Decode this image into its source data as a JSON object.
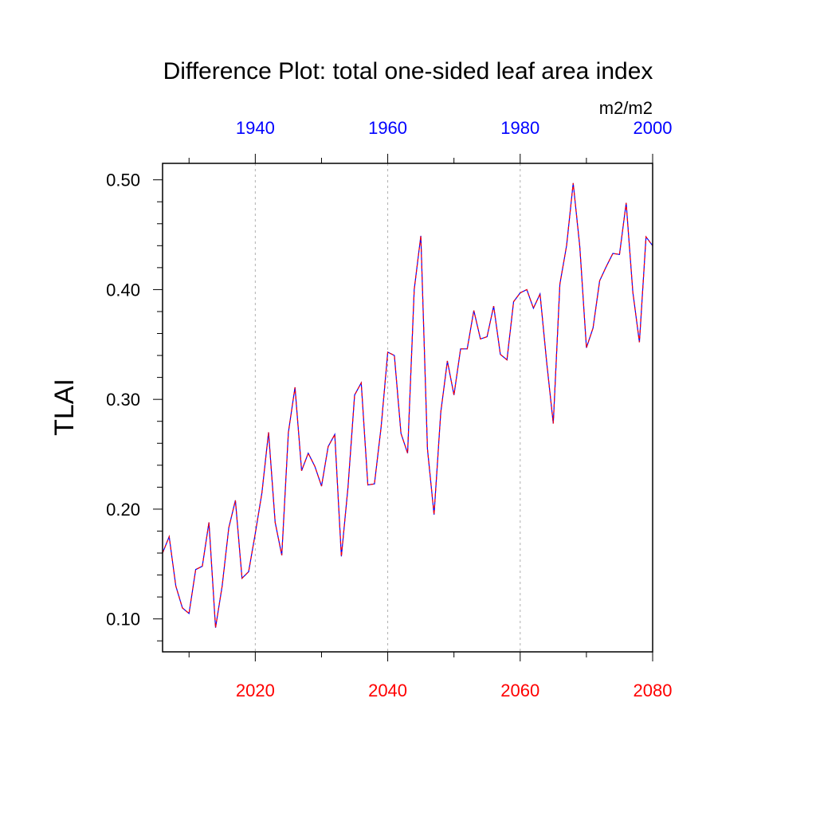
{
  "chart_data": {
    "type": "line",
    "title": "Difference Plot: total one-sided leaf area index",
    "units": "m2/m2",
    "ylabel": "TLAI",
    "xlim": [
      2006,
      2080
    ],
    "ylim": [
      0.07,
      0.515
    ],
    "grid": "vertical dashed at bottom-axis major ticks",
    "bottom_axis": {
      "ticks": [
        2020,
        2040,
        2060,
        2080
      ],
      "tick_labels": [
        "2020",
        "2040",
        "2060",
        "2080"
      ],
      "color": "#ff0000"
    },
    "top_axis": {
      "year_offset": -80,
      "ticks": [
        1940,
        1960,
        1980,
        2000
      ],
      "tick_labels": [
        "1940",
        "1960",
        "1980",
        "2000"
      ],
      "color": "#0000ff"
    },
    "y_ticks": [
      0.1,
      0.2,
      0.3,
      0.4,
      0.5
    ],
    "y_tick_labels": [
      "0.10",
      "0.20",
      "0.30",
      "0.40",
      "0.50"
    ],
    "x": [
      2006,
      2007,
      2008,
      2009,
      2010,
      2011,
      2012,
      2013,
      2014,
      2015,
      2016,
      2017,
      2018,
      2019,
      2020,
      2021,
      2022,
      2023,
      2024,
      2025,
      2026,
      2027,
      2028,
      2029,
      2030,
      2031,
      2032,
      2033,
      2034,
      2035,
      2036,
      2037,
      2038,
      2039,
      2040,
      2041,
      2042,
      2043,
      2044,
      2045,
      2046,
      2047,
      2048,
      2049,
      2050,
      2051,
      2052,
      2053,
      2054,
      2055,
      2056,
      2057,
      2058,
      2059,
      2060,
      2061,
      2062,
      2063,
      2064,
      2065,
      2066,
      2067,
      2068,
      2069,
      2070,
      2071,
      2072,
      2073,
      2074,
      2075,
      2076,
      2077,
      2078,
      2079,
      2080
    ],
    "series": [
      {
        "line_color": "#0000ff",
        "dash": "solid",
        "values": [
          0.16,
          0.175,
          0.13,
          0.11,
          0.105,
          0.145,
          0.148,
          0.188,
          0.092,
          0.13,
          0.183,
          0.208,
          0.137,
          0.143,
          0.178,
          0.215,
          0.27,
          0.188,
          0.158,
          0.27,
          0.311,
          0.235,
          0.251,
          0.239,
          0.221,
          0.257,
          0.268,
          0.157,
          0.22,
          0.304,
          0.315,
          0.222,
          0.223,
          0.275,
          0.343,
          0.34,
          0.269,
          0.251,
          0.4,
          0.449,
          0.255,
          0.195,
          0.288,
          0.335,
          0.304,
          0.346,
          0.346,
          0.381,
          0.355,
          0.357,
          0.385,
          0.341,
          0.336,
          0.389,
          0.397,
          0.4,
          0.383,
          0.396,
          0.334,
          0.278,
          0.405,
          0.44,
          0.497,
          0.439,
          0.347,
          0.365,
          0.408,
          0.421,
          0.433,
          0.432,
          0.479,
          0.398,
          0.352,
          0.448,
          0.44
        ]
      },
      {
        "line_color": "#ff0000",
        "dash": "dashed",
        "values": [
          0.16,
          0.175,
          0.13,
          0.11,
          0.105,
          0.145,
          0.148,
          0.188,
          0.092,
          0.13,
          0.183,
          0.208,
          0.137,
          0.143,
          0.178,
          0.215,
          0.27,
          0.188,
          0.158,
          0.27,
          0.311,
          0.235,
          0.251,
          0.239,
          0.221,
          0.257,
          0.268,
          0.157,
          0.22,
          0.304,
          0.315,
          0.222,
          0.223,
          0.275,
          0.343,
          0.34,
          0.269,
          0.251,
          0.4,
          0.449,
          0.255,
          0.195,
          0.288,
          0.335,
          0.304,
          0.346,
          0.346,
          0.381,
          0.355,
          0.357,
          0.385,
          0.341,
          0.336,
          0.389,
          0.397,
          0.4,
          0.383,
          0.396,
          0.334,
          0.278,
          0.405,
          0.44,
          0.497,
          0.439,
          0.347,
          0.365,
          0.408,
          0.421,
          0.433,
          0.432,
          0.479,
          0.398,
          0.352,
          0.448,
          0.44
        ]
      }
    ]
  }
}
